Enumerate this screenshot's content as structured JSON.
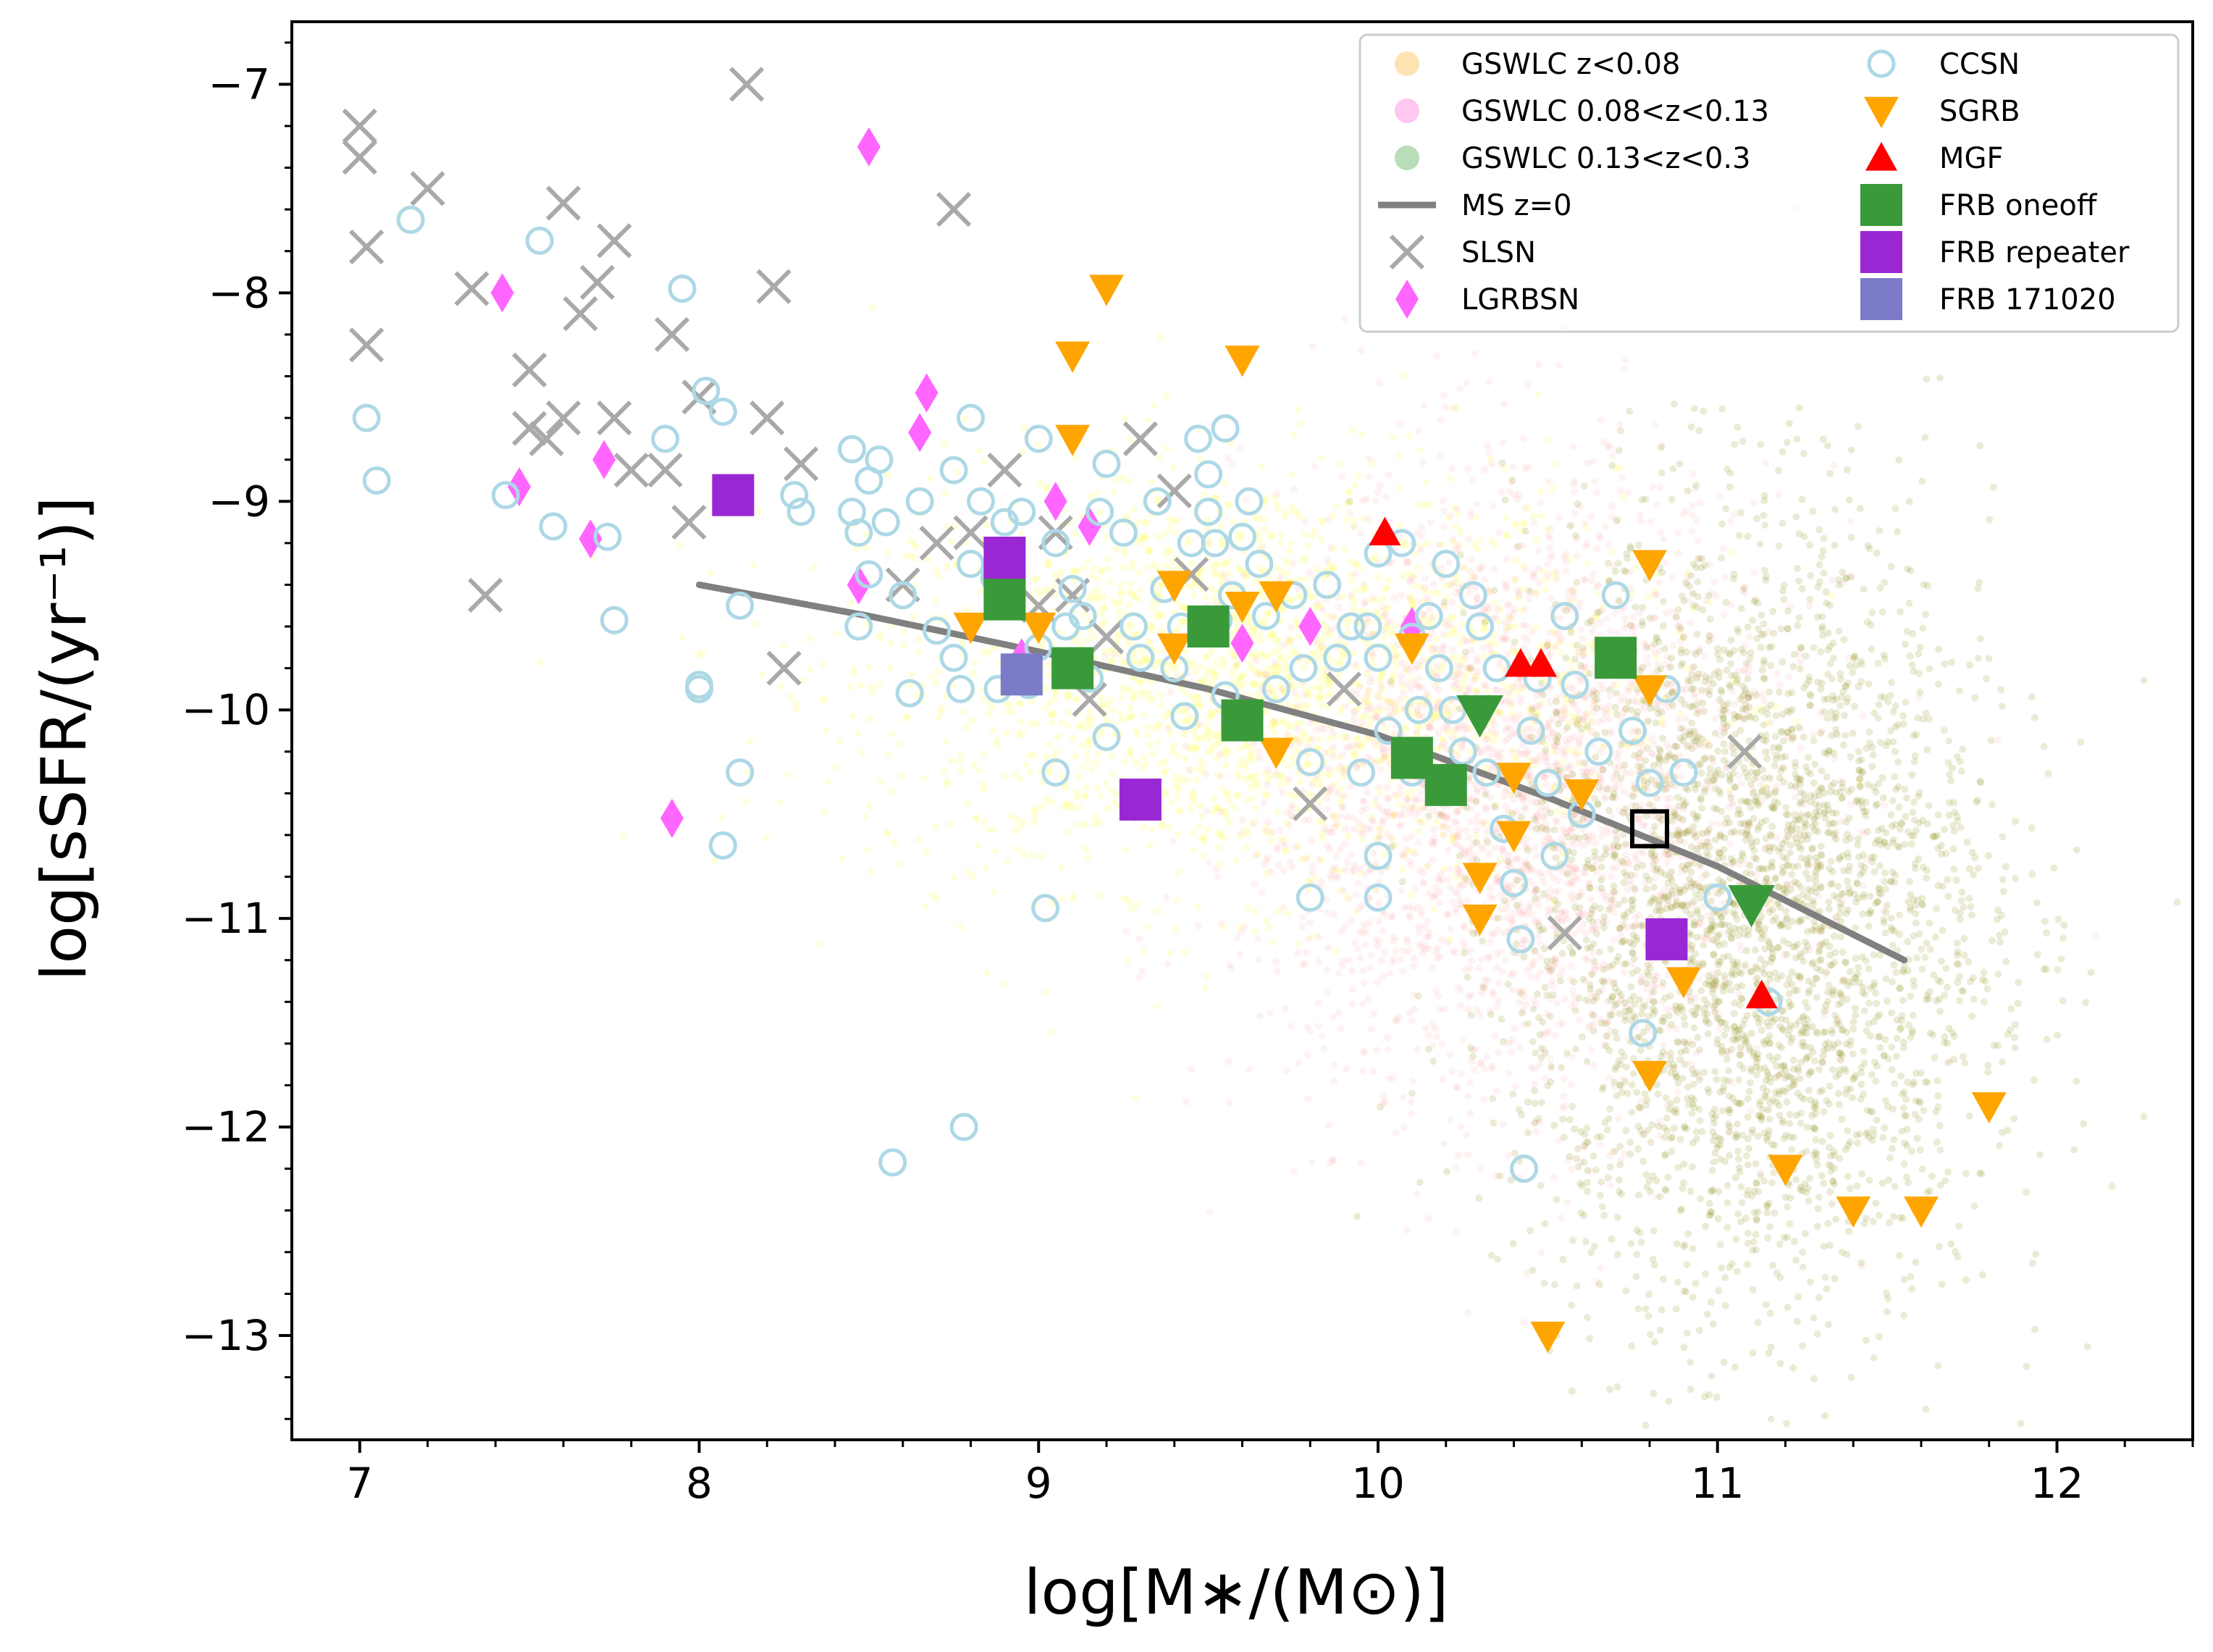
{
  "chart_data": {
    "type": "scatter",
    "title": "",
    "xlabel": "log[M∗/(M⊙)]",
    "ylabel": "log[sSFR/(yr⁻¹)]",
    "xlim": [
      6.8,
      12.4
    ],
    "ylim": [
      -13.5,
      -6.7
    ],
    "xticks": [
      7,
      8,
      9,
      10,
      11,
      12
    ],
    "xtick_labels": [
      "7",
      "8",
      "9",
      "10",
      "11",
      "12"
    ],
    "yticks": [
      -13,
      -12,
      -11,
      -10,
      -9,
      -8,
      -7
    ],
    "ytick_labels": [
      "−13",
      "−12",
      "−11",
      "−10",
      "−9",
      "−8",
      "−7"
    ],
    "grid": false,
    "legend_position": "top-right",
    "background_samples": [
      {
        "name": "GSWLC z<0.08",
        "color": "#ffff00",
        "legend_color": "#fde3b2",
        "count": 2200,
        "center": [
          9.6,
          -9.85
        ],
        "spread": [
          0.55,
          0.5
        ]
      },
      {
        "name": "GSWLC 0.08<z<0.13",
        "color": "#ff9999",
        "legend_color": "#ffc8f0",
        "count": 2600,
        "center": [
          10.4,
          -10.4
        ],
        "spread": [
          0.4,
          0.75
        ]
      },
      {
        "name": "GSWLC 0.13<z<0.3",
        "color": "#808000",
        "legend_color": "#b8ddb8",
        "count": 3200,
        "center": [
          11.1,
          -11.0
        ],
        "spread": [
          0.35,
          0.95
        ]
      }
    ],
    "ms_line": {
      "name": "MS z=0",
      "color": "#808080",
      "x": [
        8.0,
        8.5,
        9.0,
        9.5,
        10.0,
        10.5,
        11.0,
        11.55
      ],
      "y": [
        -9.4,
        -9.55,
        -9.72,
        -9.9,
        -10.12,
        -10.42,
        -10.75,
        -11.2
      ]
    },
    "series": [
      {
        "name": "SLSN",
        "marker": "x",
        "color": "#a9a9a9",
        "points": [
          [
            7.0,
            -7.2
          ],
          [
            7.0,
            -7.35
          ],
          [
            7.02,
            -7.78
          ],
          [
            7.02,
            -8.25
          ],
          [
            7.2,
            -7.5
          ],
          [
            7.33,
            -7.98
          ],
          [
            7.5,
            -8.37
          ],
          [
            7.5,
            -8.65
          ],
          [
            7.55,
            -8.7
          ],
          [
            7.6,
            -7.57
          ],
          [
            7.6,
            -8.6
          ],
          [
            7.7,
            -7.95
          ],
          [
            7.75,
            -7.75
          ],
          [
            7.75,
            -8.6
          ],
          [
            7.65,
            -8.1
          ],
          [
            7.8,
            -8.85
          ],
          [
            7.9,
            -8.85
          ],
          [
            7.92,
            -8.2
          ],
          [
            8.0,
            -8.5
          ],
          [
            7.97,
            -9.1
          ],
          [
            8.14,
            -7.0
          ],
          [
            8.2,
            -8.6
          ],
          [
            8.22,
            -7.97
          ],
          [
            8.3,
            -8.82
          ],
          [
            8.25,
            -9.8
          ],
          [
            7.37,
            -9.45
          ],
          [
            8.75,
            -7.6
          ],
          [
            8.7,
            -9.2
          ],
          [
            8.6,
            -9.4
          ],
          [
            8.8,
            -9.15
          ],
          [
            8.9,
            -8.85
          ],
          [
            9.0,
            -9.5
          ],
          [
            9.05,
            -9.15
          ],
          [
            9.1,
            -9.45
          ],
          [
            9.15,
            -9.95
          ],
          [
            9.3,
            -8.7
          ],
          [
            9.4,
            -8.95
          ],
          [
            9.45,
            -9.35
          ],
          [
            9.2,
            -9.65
          ],
          [
            9.8,
            -10.45
          ],
          [
            9.9,
            -9.9
          ],
          [
            10.55,
            -11.07
          ],
          [
            11.08,
            -10.2
          ]
        ]
      },
      {
        "name": "LGRBSN",
        "marker": "diamond",
        "color": "#ff66ff",
        "points": [
          [
            7.42,
            -8.0
          ],
          [
            7.47,
            -8.93
          ],
          [
            7.68,
            -9.18
          ],
          [
            7.72,
            -8.8
          ],
          [
            7.92,
            -10.52
          ],
          [
            8.47,
            -9.4
          ],
          [
            8.5,
            -7.3
          ],
          [
            8.65,
            -8.67
          ],
          [
            8.67,
            -8.48
          ],
          [
            9.05,
            -9.0
          ],
          [
            9.15,
            -9.12
          ],
          [
            9.6,
            -9.68
          ],
          [
            9.8,
            -9.6
          ],
          [
            10.1,
            -9.6
          ],
          [
            8.95,
            -9.75
          ]
        ]
      },
      {
        "name": "CCSN",
        "marker": "circle",
        "color": "#add8e6",
        "points": [
          [
            7.02,
            -8.6
          ],
          [
            7.05,
            -8.9
          ],
          [
            7.15,
            -7.65
          ],
          [
            7.43,
            -8.97
          ],
          [
            7.53,
            -7.75
          ],
          [
            7.57,
            -9.12
          ],
          [
            7.73,
            -9.17
          ],
          [
            7.75,
            -9.57
          ],
          [
            7.9,
            -8.7
          ],
          [
            7.95,
            -7.98
          ],
          [
            8.0,
            -9.88
          ],
          [
            8.0,
            -9.9
          ],
          [
            8.02,
            -8.47
          ],
          [
            8.07,
            -8.57
          ],
          [
            8.07,
            -10.65
          ],
          [
            8.12,
            -9.5
          ],
          [
            8.12,
            -10.3
          ],
          [
            8.28,
            -8.97
          ],
          [
            8.3,
            -9.05
          ],
          [
            8.45,
            -8.75
          ],
          [
            8.45,
            -9.05
          ],
          [
            8.47,
            -9.15
          ],
          [
            8.47,
            -9.6
          ],
          [
            8.5,
            -8.9
          ],
          [
            8.5,
            -9.35
          ],
          [
            8.53,
            -8.8
          ],
          [
            8.55,
            -9.1
          ],
          [
            8.57,
            -12.17
          ],
          [
            8.6,
            -9.45
          ],
          [
            8.62,
            -9.92
          ],
          [
            8.65,
            -9.0
          ],
          [
            8.7,
            -9.62
          ],
          [
            8.75,
            -8.85
          ],
          [
            8.75,
            -9.75
          ],
          [
            8.77,
            -9.9
          ],
          [
            8.78,
            -12.0
          ],
          [
            8.8,
            -8.6
          ],
          [
            8.8,
            -9.3
          ],
          [
            8.83,
            -9.0
          ],
          [
            8.87,
            -9.37
          ],
          [
            8.9,
            -9.1
          ],
          [
            8.92,
            -9.45
          ],
          [
            8.95,
            -9.05
          ],
          [
            8.97,
            -9.88
          ],
          [
            9.0,
            -8.7
          ],
          [
            9.0,
            -9.7
          ],
          [
            9.02,
            -10.95
          ],
          [
            9.05,
            -9.2
          ],
          [
            9.05,
            -10.3
          ],
          [
            9.08,
            -9.6
          ],
          [
            9.1,
            -9.42
          ],
          [
            9.13,
            -9.55
          ],
          [
            9.15,
            -9.85
          ],
          [
            9.18,
            -9.05
          ],
          [
            9.2,
            -8.82
          ],
          [
            9.2,
            -10.13
          ],
          [
            9.25,
            -9.15
          ],
          [
            9.28,
            -9.6
          ],
          [
            9.3,
            -9.75
          ],
          [
            9.35,
            -9.0
          ],
          [
            9.37,
            -9.42
          ],
          [
            9.4,
            -9.8
          ],
          [
            9.42,
            -9.6
          ],
          [
            9.43,
            -10.03
          ],
          [
            9.45,
            -9.2
          ],
          [
            9.47,
            -8.7
          ],
          [
            9.5,
            -8.87
          ],
          [
            9.5,
            -9.05
          ],
          [
            9.52,
            -9.2
          ],
          [
            9.53,
            -9.57
          ],
          [
            9.55,
            -8.65
          ],
          [
            9.55,
            -9.93
          ],
          [
            9.57,
            -9.45
          ],
          [
            9.6,
            -9.17
          ],
          [
            9.62,
            -9.0
          ],
          [
            9.65,
            -9.3
          ],
          [
            9.67,
            -9.55
          ],
          [
            9.7,
            -9.9
          ],
          [
            9.75,
            -9.45
          ],
          [
            9.78,
            -9.8
          ],
          [
            9.8,
            -10.25
          ],
          [
            9.8,
            -10.9
          ],
          [
            9.85,
            -9.4
          ],
          [
            9.88,
            -9.75
          ],
          [
            9.92,
            -9.6
          ],
          [
            9.95,
            -10.3
          ],
          [
            9.97,
            -9.6
          ],
          [
            10.0,
            -9.25
          ],
          [
            10.0,
            -9.75
          ],
          [
            10.0,
            -10.7
          ],
          [
            10.0,
            -10.9
          ],
          [
            10.03,
            -10.1
          ],
          [
            10.07,
            -9.2
          ],
          [
            10.1,
            -9.65
          ],
          [
            10.1,
            -10.3
          ],
          [
            10.12,
            -10.0
          ],
          [
            10.15,
            -9.55
          ],
          [
            10.18,
            -9.8
          ],
          [
            10.2,
            -9.3
          ],
          [
            10.22,
            -10.0
          ],
          [
            10.25,
            -10.2
          ],
          [
            10.28,
            -9.45
          ],
          [
            10.3,
            -9.6
          ],
          [
            10.32,
            -10.3
          ],
          [
            10.35,
            -9.8
          ],
          [
            10.37,
            -10.57
          ],
          [
            10.4,
            -10.83
          ],
          [
            10.42,
            -11.1
          ],
          [
            10.43,
            -12.2
          ],
          [
            10.45,
            -10.1
          ],
          [
            10.47,
            -9.85
          ],
          [
            10.5,
            -10.35
          ],
          [
            10.52,
            -10.7
          ],
          [
            10.55,
            -9.55
          ],
          [
            10.58,
            -9.88
          ],
          [
            10.6,
            -10.5
          ],
          [
            10.65,
            -10.2
          ],
          [
            10.7,
            -9.45
          ],
          [
            10.75,
            -10.1
          ],
          [
            10.78,
            -11.55
          ],
          [
            10.8,
            -10.35
          ],
          [
            10.85,
            -9.9
          ],
          [
            10.9,
            -10.3
          ],
          [
            11.0,
            -10.9
          ],
          [
            11.15,
            -11.4
          ],
          [
            8.88,
            -9.9
          ]
        ]
      },
      {
        "name": "SGRB",
        "marker": "triangle-down",
        "color": "#ffa500",
        "points": [
          [
            8.8,
            -9.6
          ],
          [
            9.0,
            -9.6
          ],
          [
            9.1,
            -8.3
          ],
          [
            9.1,
            -8.7
          ],
          [
            9.2,
            -7.98
          ],
          [
            9.4,
            -9.4
          ],
          [
            9.4,
            -9.7
          ],
          [
            9.6,
            -8.32
          ],
          [
            9.6,
            -9.5
          ],
          [
            9.7,
            -9.45
          ],
          [
            9.7,
            -10.2
          ],
          [
            10.1,
            -9.7
          ],
          [
            10.3,
            -10.8
          ],
          [
            10.3,
            -11.0
          ],
          [
            10.4,
            -10.32
          ],
          [
            10.4,
            -10.6
          ],
          [
            10.5,
            -13.0
          ],
          [
            10.6,
            -10.4
          ],
          [
            10.8,
            -9.9
          ],
          [
            10.8,
            -11.75
          ],
          [
            10.8,
            -9.3
          ],
          [
            10.9,
            -11.3
          ],
          [
            11.2,
            -12.2
          ],
          [
            11.4,
            -12.4
          ],
          [
            11.6,
            -12.4
          ],
          [
            11.8,
            -11.9
          ]
        ]
      },
      {
        "name": "MGF",
        "marker": "triangle-up",
        "color": "#ff0000",
        "points": [
          [
            10.02,
            -9.15
          ],
          [
            10.42,
            -9.78
          ],
          [
            10.48,
            -9.78
          ],
          [
            11.13,
            -11.37
          ]
        ]
      },
      {
        "name": "FRB oneoff",
        "marker": "square",
        "color": "#3a9a3a",
        "points": [
          [
            8.9,
            -9.47
          ],
          [
            9.1,
            -9.8
          ],
          [
            9.5,
            -9.6
          ],
          [
            9.6,
            -10.05
          ],
          [
            10.1,
            -10.23
          ],
          [
            10.2,
            -10.36
          ],
          [
            10.7,
            -9.75
          ]
        ]
      },
      {
        "name": "FRB oneoff (lower limit)",
        "marker": "triangle-down-green",
        "color": "#3a9a3a",
        "points": [
          [
            10.3,
            -10.02
          ],
          [
            11.1,
            -10.93
          ]
        ]
      },
      {
        "name": "FRB repeater",
        "marker": "square",
        "color": "#9a27d4",
        "points": [
          [
            8.1,
            -8.97
          ],
          [
            8.9,
            -9.27
          ],
          [
            9.3,
            -10.43
          ],
          [
            10.85,
            -11.1
          ]
        ]
      },
      {
        "name": "FRB repeater (open)",
        "marker": "square-open",
        "color": "#000000",
        "points": [
          [
            10.8,
            -10.57
          ]
        ]
      },
      {
        "name": "FRB 171020",
        "marker": "square",
        "color": "#7b7bc8",
        "points": [
          [
            8.95,
            -9.83
          ]
        ]
      }
    ],
    "legend": [
      {
        "label": "GSWLC z<0.08",
        "marker": "dot",
        "color": "#fde3b2"
      },
      {
        "label": "GSWLC 0.08<z<0.13",
        "marker": "dot",
        "color": "#ffc8f0"
      },
      {
        "label": "GSWLC 0.13<z<0.3",
        "marker": "dot",
        "color": "#b8ddb8"
      },
      {
        "label": "MS z=0",
        "marker": "line",
        "color": "#808080"
      },
      {
        "label": "SLSN",
        "marker": "x",
        "color": "#a9a9a9"
      },
      {
        "label": "LGRBSN",
        "marker": "diamond",
        "color": "#ff66ff"
      },
      {
        "label": "CCSN",
        "marker": "circle",
        "color": "#add8e6"
      },
      {
        "label": "SGRB",
        "marker": "triangle-down",
        "color": "#ffa500"
      },
      {
        "label": "MGF",
        "marker": "triangle-up",
        "color": "#ff0000"
      },
      {
        "label": "FRB oneoff",
        "marker": "square",
        "color": "#3a9a3a"
      },
      {
        "label": "FRB repeater",
        "marker": "square",
        "color": "#9a27d4"
      },
      {
        "label": "FRB 171020",
        "marker": "square",
        "color": "#7b7bc8"
      }
    ]
  }
}
